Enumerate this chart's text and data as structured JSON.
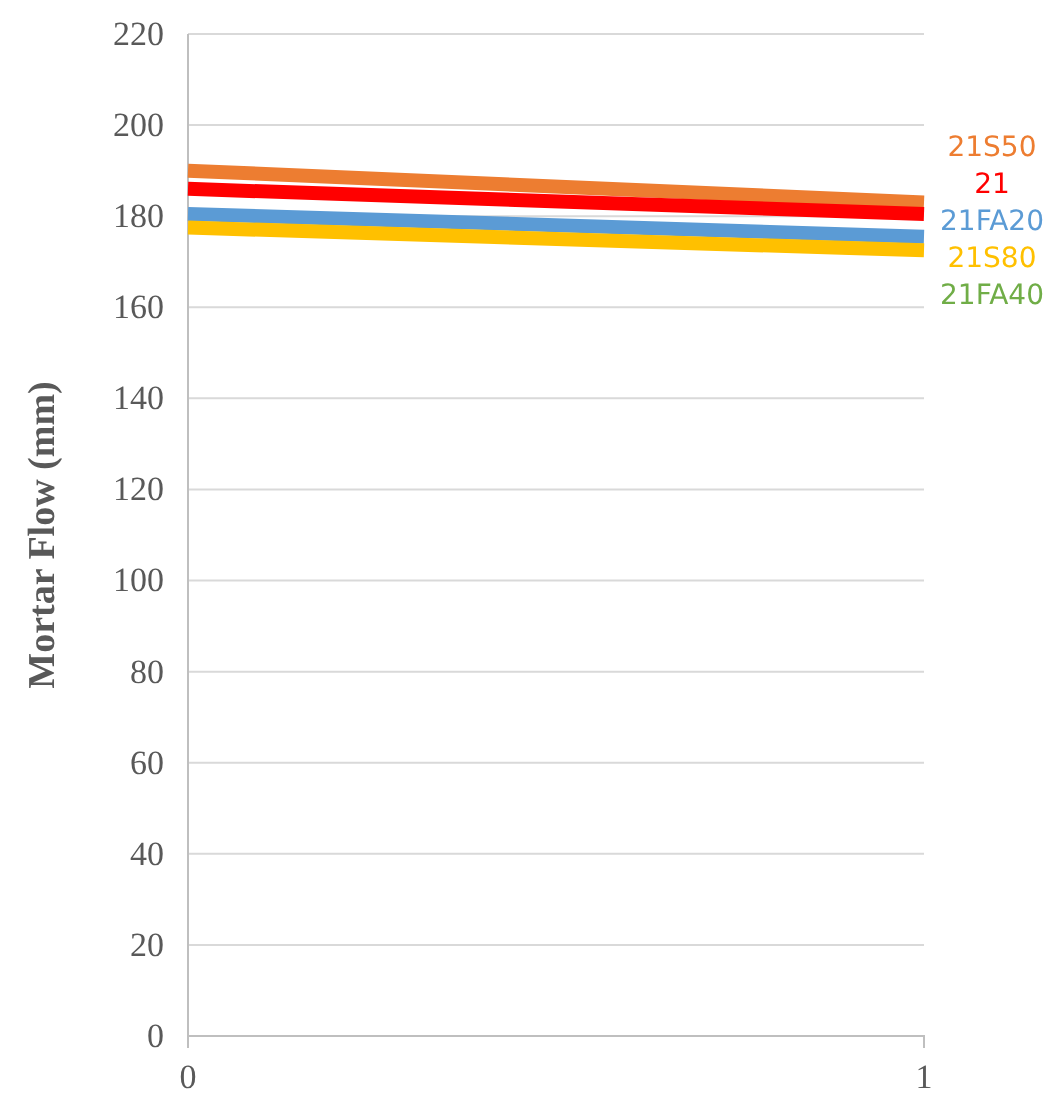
{
  "chart_data": {
    "type": "line",
    "ylabel": "Mortar Flow (mm)",
    "x": [
      0,
      1
    ],
    "xlim": [
      0,
      1
    ],
    "xticks": [
      0,
      1
    ],
    "ylim": [
      0,
      220
    ],
    "yticks": [
      0,
      20,
      40,
      60,
      80,
      100,
      120,
      140,
      160,
      180,
      200,
      220
    ],
    "grid": "y",
    "marker": "none",
    "line_style": "solid",
    "series": [
      {
        "name": "21S50",
        "color": "#ed7d31",
        "values": [
          190,
          183
        ]
      },
      {
        "name": "21",
        "color": "#ff0000",
        "values": [
          186,
          180.5
        ]
      },
      {
        "name": "21FA20",
        "color": "#5b9bd5",
        "values": [
          180.5,
          175.5
        ]
      },
      {
        "name": "21S80",
        "color": "#ffc000",
        "values": [
          177.5,
          172.5
        ]
      },
      {
        "name": "21FA40",
        "color": "#70ad47",
        "values": [
          null,
          null
        ]
      }
    ]
  }
}
